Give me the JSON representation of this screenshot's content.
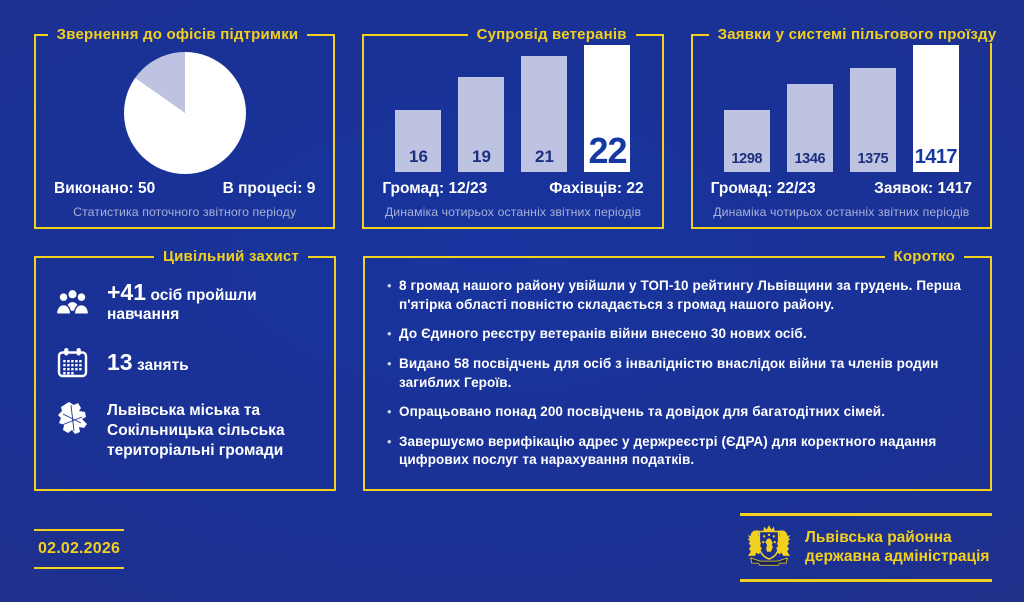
{
  "colors": {
    "accent_yellow": "#f2d01e",
    "bar_lavender": "#bdc3e0",
    "bar_highlight": "#ffffff",
    "bar_number_navy": "#1c2f80",
    "highlight_number_blue": "#1539a3",
    "background_center": "#17349e",
    "background_edge": "#2e2d78"
  },
  "panels": {
    "appeals": {
      "title": "Звернення до офісів підтримки",
      "done_label": "Виконано: 50",
      "in_progress_label": "В процесі: 9",
      "caption": "Статистика поточного звітного періоду"
    },
    "veterans": {
      "title": "Супровід ветеранів",
      "left_label": "Громад: 12/23",
      "right_label": "Фахівців: 22",
      "caption": "Динаміка чотирьох останніх звітних періодів"
    },
    "transit": {
      "title": "Заявки у системі пільгового проїзду",
      "left_label": "Громад: 22/23",
      "right_label": "Заявок: 1417",
      "caption": "Динаміка чотирьох останніх звітних періодів"
    },
    "civil": {
      "title": "Цивільний захист",
      "items": [
        {
          "icon": "people-group-icon",
          "value": "+41",
          "text": "осіб пройшли навчання"
        },
        {
          "icon": "calendar-icon",
          "value": "13",
          "text": "занять"
        },
        {
          "icon": "district-map-icon",
          "value": "",
          "text": "Львівська міська та Сокільницька сільська територіальні громади"
        }
      ]
    },
    "short": {
      "title": "Коротко",
      "items": [
        "8 громад нашого району увійшли у ТОП-10 рейтингу Львівщини за грудень. Перша п'ятірка області повністю складається з громад нашого району.",
        "До Єдиного реєстру ветеранів війни внесено 30 нових осіб.",
        "Видано 58 посвідчень для осіб з інвалідністю внаслідок війни та членів родин загиблих Героїв.",
        "Опрацьовано понад 200 посвідчень та довідок для багатодітних сімей.",
        "Завершуємо верифікацію адрес у держреєстрі (ЄДРА) для коректного надання цифрових послуг та нарахування податків."
      ]
    }
  },
  "chart_data": [
    {
      "type": "pie",
      "title": "Звернення до офісів підтримки",
      "slices": [
        {
          "label": "Виконано",
          "value": 50,
          "color": "#ffffff"
        },
        {
          "label": "В процесі",
          "value": 9,
          "color": "#bdc3e0"
        }
      ],
      "legend_position": "none",
      "note": "Статистика поточного звітного періоду"
    },
    {
      "type": "bar",
      "title": "Супровід ветеранів",
      "values": [
        16,
        19,
        21,
        22
      ],
      "highlight_index": 3,
      "ylim": [
        16,
        22
      ],
      "note": "Динаміка чотирьох останніх звітних періодів"
    },
    {
      "type": "bar",
      "title": "Заявки у системі пільгового проїзду",
      "values": [
        1298,
        1346,
        1375,
        1417
      ],
      "highlight_index": 3,
      "ylim": [
        1298,
        1417
      ],
      "note": "Динаміка чотирьох останніх звітних періодів"
    }
  ],
  "footer": {
    "date": "02.02.2026",
    "org_name_line1": "Львівська районна",
    "org_name_line2": "державна адміністрація"
  }
}
